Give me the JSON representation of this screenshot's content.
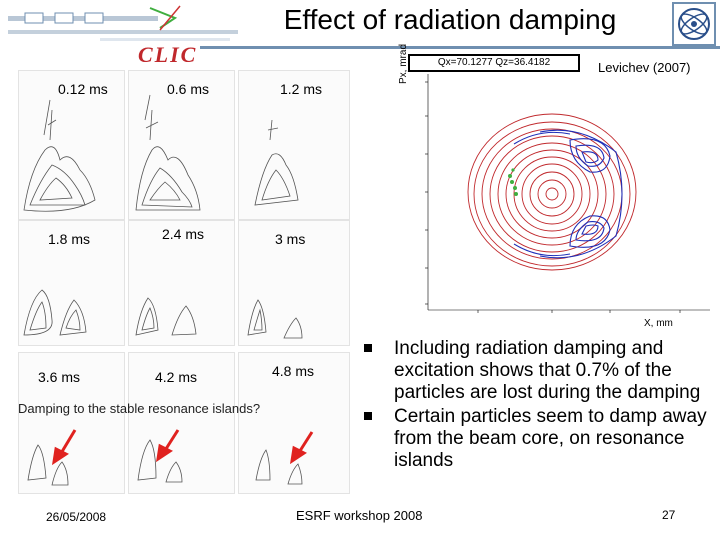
{
  "slide": {
    "title": "Effect of radiation damping",
    "logo_text": "CLIC",
    "citation": "Levichev (2007)",
    "question": "Damping to the stable resonance islands?"
  },
  "time_labels": {
    "t1": "0.12 ms",
    "t2": "0.6 ms",
    "t3": "1.2 ms",
    "t4": "1.8 ms",
    "t5": "2.4 ms",
    "t6": "3 ms",
    "t7": "3.6 ms",
    "t8": "4.2 ms",
    "t9": "4.8 ms"
  },
  "plot": {
    "header": "Qx=70.1277 Qz=36.4182",
    "ylabel": "Px, mrad",
    "xlabel": "X, mm"
  },
  "bullets": [
    "Including radiation damping and excitation shows that 0.7% of the particles are lost during the damping",
    "Certain particles seem to damp away from the beam core, on resonance islands"
  ],
  "footer": {
    "date": "26/05/2008",
    "event": "ESRF workshop 2008",
    "page": "27"
  },
  "colors": {
    "accent": "#6f8fb0",
    "red": "#c0282c",
    "blue": "#1f2fb8",
    "green": "#3fae3f"
  }
}
